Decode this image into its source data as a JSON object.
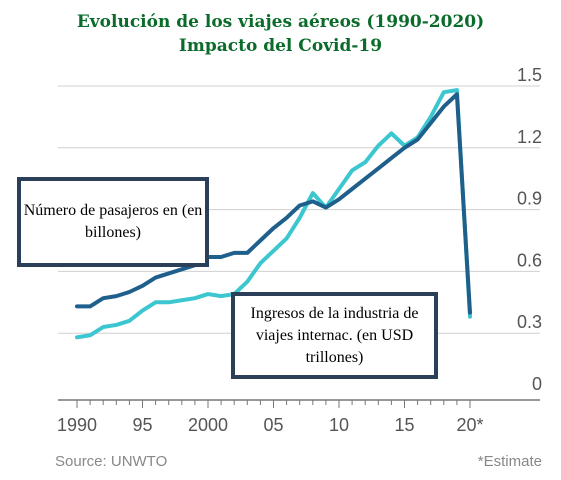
{
  "title_line1": "Evolución de los viajes aéreos (1990-2020)",
  "title_line2": "Impacto del Covid-19",
  "annotation_passengers": "Número de pasajeros en (en billones)",
  "annotation_revenue": "Ingresos de la industria de viajes internac. (en USD trillones)",
  "source": "Source: UNWTO",
  "footnote": "*Estimate",
  "colors": {
    "passengers": "#1f5f8b",
    "revenue": "#3cc6d0",
    "title": "#0b6b2a",
    "box_border": "#2b3f58"
  },
  "chart_data": {
    "type": "line",
    "x": [
      1990,
      1991,
      1992,
      1993,
      1994,
      1995,
      1996,
      1997,
      1998,
      1999,
      2000,
      2001,
      2002,
      2003,
      2004,
      2005,
      2006,
      2007,
      2008,
      2009,
      2010,
      2011,
      2012,
      2013,
      2014,
      2015,
      2016,
      2017,
      2018,
      2019,
      2020
    ],
    "x_tick_labels": [
      "1990",
      "95",
      "2000",
      "05",
      "10",
      "15",
      "20*"
    ],
    "x_tick_values": [
      1990,
      1995,
      2000,
      2005,
      2010,
      2015,
      2020
    ],
    "y_tick_labels": [
      "0",
      "0.3",
      "0.6",
      "0.9",
      "1.2",
      "1.5"
    ],
    "y_tick_values": [
      0,
      0.3,
      0.6,
      0.9,
      1.2,
      1.5
    ],
    "ylim": [
      0,
      1.5
    ],
    "xlim": [
      1990,
      2020
    ],
    "grid": "horizontal",
    "series": [
      {
        "name": "Número de pasajeros en (en billones)",
        "values": [
          0.43,
          0.43,
          0.47,
          0.48,
          0.5,
          0.53,
          0.57,
          0.59,
          0.61,
          0.63,
          0.67,
          0.67,
          0.69,
          0.69,
          0.75,
          0.81,
          0.86,
          0.92,
          0.94,
          0.91,
          0.95,
          1.0,
          1.05,
          1.1,
          1.15,
          1.2,
          1.24,
          1.32,
          1.4,
          1.46,
          0.4
        ]
      },
      {
        "name": "Ingresos de la industria de viajes internac. (en USD trillones)",
        "values": [
          0.28,
          0.29,
          0.33,
          0.34,
          0.36,
          0.41,
          0.45,
          0.45,
          0.46,
          0.47,
          0.49,
          0.48,
          0.49,
          0.55,
          0.64,
          0.7,
          0.76,
          0.86,
          0.98,
          0.91,
          1.0,
          1.09,
          1.13,
          1.21,
          1.27,
          1.21,
          1.25,
          1.35,
          1.47,
          1.48,
          0.38
        ]
      }
    ]
  }
}
